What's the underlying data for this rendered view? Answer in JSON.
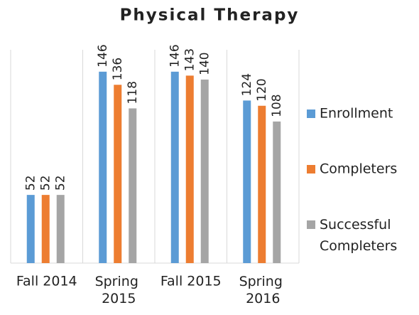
{
  "chart_data": {
    "type": "bar",
    "title": "Physical Therapy",
    "categories": [
      "Fall 2014",
      "Spring 2015",
      "Fall 2015",
      "Spring 2016"
    ],
    "series": [
      {
        "name": "Enrollment",
        "color": "#5b9bd5",
        "values": [
          52,
          146,
          146,
          124
        ]
      },
      {
        "name": "Completers",
        "color": "#ed7d31",
        "values": [
          52,
          136,
          143,
          120
        ]
      },
      {
        "name": "Successful Completers",
        "color": "#a5a5a5",
        "values": [
          52,
          118,
          140,
          108
        ]
      }
    ],
    "ylim": [
      0,
      160
    ],
    "legend": "right"
  }
}
